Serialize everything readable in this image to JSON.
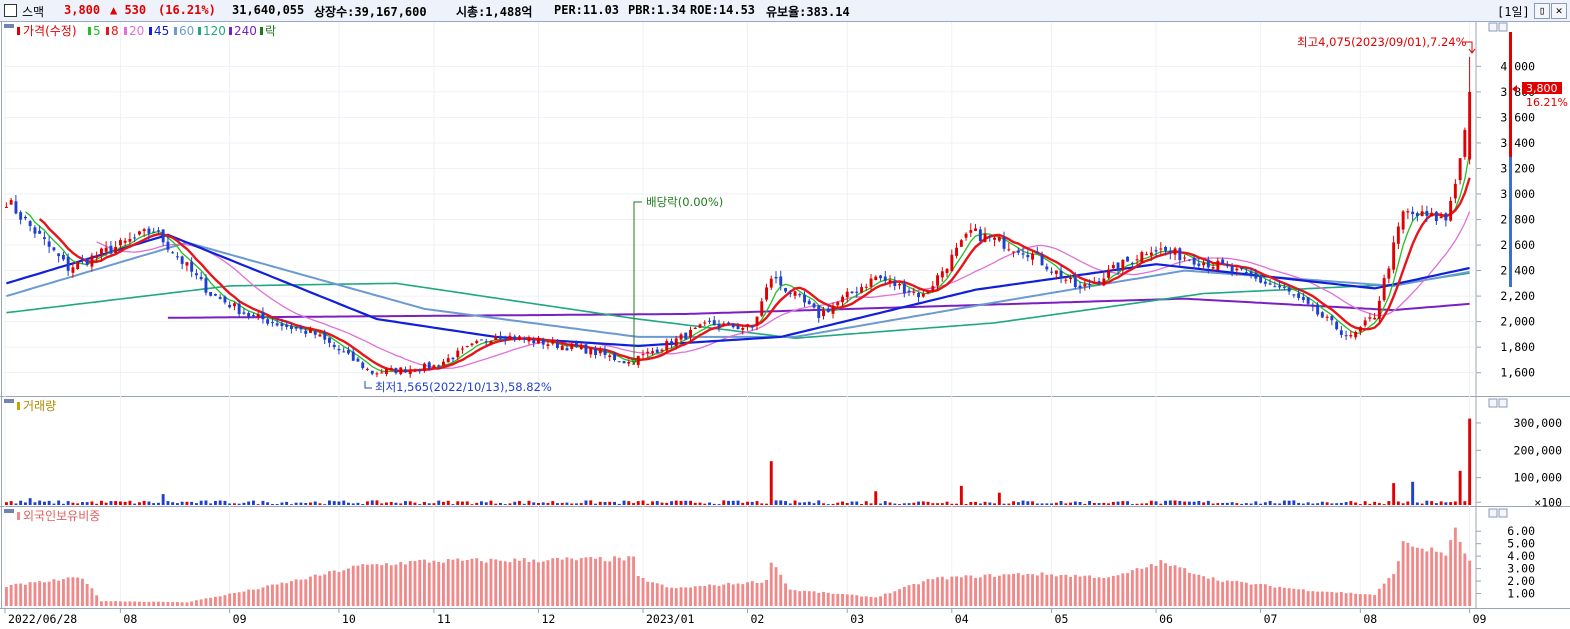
{
  "header": {
    "name": "스맥",
    "price": "3,800",
    "change": "▲ 530",
    "change_pct": "(16.21%)",
    "volume": "31,640,055",
    "listed": "상장수:39,167,600",
    "mcap": "시총:1,488억",
    "per": "PER:11.03",
    "pbr": "PBR:1.34",
    "roe": "ROE:14.53",
    "float": "유보율:383.14",
    "period": "[1일]",
    "win_btn1": "▯",
    "win_btn2": "✕"
  },
  "colors": {
    "up": "#e00000",
    "down": "#1f3fd0",
    "ma5": "#22c022",
    "ma8": "#e8141b",
    "ma20": "#e070d8",
    "ma45": "#1020d8",
    "ma60": "#6a9ad0",
    "ma120": "#20a880",
    "ma240": "#7a20c0",
    "foreign_bar": "#f08a8a"
  },
  "legend": {
    "price": "가격(수정)",
    "ma5": "5",
    "ma8": "8",
    "ma20": "20",
    "ma45": "45",
    "ma60": "60",
    "ma120": "120",
    "ma240": "240",
    "rak": "락"
  },
  "panel_titles": {
    "volume": "거래량",
    "foreign": "외국인보유비중"
  },
  "annotations": {
    "high": "최고4,075(2023/09/01),7.24%",
    "low": "최저1,565(2022/10/13),58.82%",
    "dividend": "배당락(0.00%)",
    "current_price": "3,800",
    "current_pct": "16.21%"
  },
  "chart_data": [
    {
      "type": "candlestick",
      "title": "가격(수정)",
      "y_ticks": [
        "4,000",
        "3,800",
        "3,600",
        "3,400",
        "3,200",
        "3,000",
        "2,800",
        "2,600",
        "2,400",
        "2,200",
        "2,000",
        "1,800",
        "1,600"
      ],
      "ylim": [
        1480,
        4230
      ],
      "x_ticks": [
        "2022/06/28",
        "08",
        "09",
        "10",
        "11",
        "12",
        "2023/01",
        "02",
        "03",
        "04",
        "05",
        "06",
        "07",
        "08",
        "09"
      ],
      "close_anchors": [
        {
          "date": "2022/06/28",
          "close": 2950
        },
        {
          "date": "2022/07/15",
          "close": 2420
        },
        {
          "date": "2022/08/01",
          "close": 2600
        },
        {
          "date": "2022/08/10",
          "close": 2720
        },
        {
          "date": "2022/08/26",
          "close": 2220
        },
        {
          "date": "2022/09/07",
          "close": 2050
        },
        {
          "date": "2022/09/27",
          "close": 1900
        },
        {
          "date": "2022/10/13",
          "close": 1600
        },
        {
          "date": "2022/11/01",
          "close": 1650
        },
        {
          "date": "2022/11/18",
          "close": 1900
        },
        {
          "date": "2022/12/15",
          "close": 1780
        },
        {
          "date": "2022/12/28",
          "close": 1680
        },
        {
          "date": "2023/01/20",
          "close": 1980
        },
        {
          "date": "2023/02/02",
          "close": 1950
        },
        {
          "date": "2023/02/08",
          "close": 2350
        },
        {
          "date": "2023/02/22",
          "close": 2050
        },
        {
          "date": "2023/03/10",
          "close": 2350
        },
        {
          "date": "2023/03/24",
          "close": 2200
        },
        {
          "date": "2023/04/07",
          "close": 2700
        },
        {
          "date": "2023/04/25",
          "close": 2550
        },
        {
          "date": "2023/05/10",
          "close": 2250
        },
        {
          "date": "2023/05/31",
          "close": 2580
        },
        {
          "date": "2023/06/20",
          "close": 2440
        },
        {
          "date": "2023/07/10",
          "close": 2250
        },
        {
          "date": "2023/07/28",
          "close": 1870
        },
        {
          "date": "2023/08/04",
          "close": 2050
        },
        {
          "date": "2023/08/14",
          "close": 2850
        },
        {
          "date": "2023/08/25",
          "close": 2800
        },
        {
          "date": "2023/08/30",
          "close": 3270
        },
        {
          "date": "2023/09/01",
          "close": 3800
        }
      ],
      "ma_anchors": {
        "ma45": [
          {
            "date": "2022/06/28",
            "v": 2300
          },
          {
            "date": "2022/08/15",
            "v": 2680
          },
          {
            "date": "2022/10/15",
            "v": 2020
          },
          {
            "date": "2022/11/20",
            "v": 1880
          },
          {
            "date": "2023/01/01",
            "v": 1810
          },
          {
            "date": "2023/02/10",
            "v": 1880
          },
          {
            "date": "2023/04/10",
            "v": 2250
          },
          {
            "date": "2023/06/01",
            "v": 2450
          },
          {
            "date": "2023/08/05",
            "v": 2260
          },
          {
            "date": "2023/09/01",
            "v": 2420
          }
        ],
        "ma60": [
          {
            "date": "2022/06/28",
            "v": 2200
          },
          {
            "date": "2022/08/20",
            "v": 2620
          },
          {
            "date": "2022/10/30",
            "v": 2100
          },
          {
            "date": "2023/01/01",
            "v": 1880
          },
          {
            "date": "2023/02/15",
            "v": 1880
          },
          {
            "date": "2023/04/15",
            "v": 2150
          },
          {
            "date": "2023/06/10",
            "v": 2400
          },
          {
            "date": "2023/08/10",
            "v": 2280
          },
          {
            "date": "2023/09/01",
            "v": 2390
          }
        ],
        "ma120": [
          {
            "date": "2022/06/28",
            "v": 2070
          },
          {
            "date": "2022/09/01",
            "v": 2280
          },
          {
            "date": "2022/10/20",
            "v": 2300
          },
          {
            "date": "2023/01/01",
            "v": 2020
          },
          {
            "date": "2023/02/15",
            "v": 1870
          },
          {
            "date": "2023/04/15",
            "v": 1990
          },
          {
            "date": "2023/06/15",
            "v": 2220
          },
          {
            "date": "2023/08/10",
            "v": 2290
          },
          {
            "date": "2023/09/01",
            "v": 2380
          }
        ],
        "ma240": [
          {
            "date": "2022/08/15",
            "v": 2030
          },
          {
            "date": "2023/01/15",
            "v": 2060
          },
          {
            "date": "2023/06/10",
            "v": 2180
          },
          {
            "date": "2023/08/10",
            "v": 2090
          },
          {
            "date": "2023/09/01",
            "v": 2140
          }
        ]
      }
    },
    {
      "type": "bar",
      "title": "거래량",
      "y_ticks": [
        "300,000",
        "200,000",
        "100,000",
        "×100"
      ],
      "ylim": [
        0,
        340000
      ],
      "spikes": [
        {
          "date": "2022/07/05",
          "value": 25000
        },
        {
          "date": "2022/08/12",
          "value": 40000
        },
        {
          "date": "2023/02/08",
          "value": 160000
        },
        {
          "date": "2023/03/10",
          "value": 50000
        },
        {
          "date": "2023/04/05",
          "value": 70000
        },
        {
          "date": "2023/04/17",
          "value": 45000
        },
        {
          "date": "2023/08/10",
          "value": 80000
        },
        {
          "date": "2023/08/16",
          "value": 85000
        },
        {
          "date": "2023/08/30",
          "value": 125000
        },
        {
          "date": "2023/09/01",
          "value": 316000
        }
      ]
    },
    {
      "type": "bar",
      "title": "외국인보유비중",
      "y_ticks": [
        "6.00",
        "5.00",
        "4.00",
        "3.00",
        "2.00",
        "1.00"
      ],
      "ylim": [
        0,
        6.9
      ],
      "anchors": [
        {
          "date": "2022/06/28",
          "v": 1.6
        },
        {
          "date": "2022/07/20",
          "v": 2.3
        },
        {
          "date": "2022/07/26",
          "v": 0.4
        },
        {
          "date": "2022/08/20",
          "v": 0.3
        },
        {
          "date": "2022/09/10",
          "v": 1.4
        },
        {
          "date": "2022/09/26",
          "v": 2.3
        },
        {
          "date": "2022/10/10",
          "v": 3.2
        },
        {
          "date": "2022/10/28",
          "v": 3.6
        },
        {
          "date": "2022/12/05",
          "v": 3.7
        },
        {
          "date": "2022/12/30",
          "v": 3.8
        },
        {
          "date": "2022/12/31",
          "v": 2.3
        },
        {
          "date": "2023/01/10",
          "v": 1.4
        },
        {
          "date": "2023/02/07",
          "v": 2.0
        },
        {
          "date": "2023/02/08",
          "v": 3.7
        },
        {
          "date": "2023/02/14",
          "v": 1.3
        },
        {
          "date": "2023/03/10",
          "v": 0.7
        },
        {
          "date": "2023/03/28",
          "v": 2.2
        },
        {
          "date": "2023/04/25",
          "v": 2.6
        },
        {
          "date": "2023/05/20",
          "v": 2.3
        },
        {
          "date": "2023/06/03",
          "v": 3.5
        },
        {
          "date": "2023/06/20",
          "v": 2.1
        },
        {
          "date": "2023/07/15",
          "v": 1.3
        },
        {
          "date": "2023/08/05",
          "v": 0.9
        },
        {
          "date": "2023/08/10",
          "v": 2.6
        },
        {
          "date": "2023/08/14",
          "v": 5.0
        },
        {
          "date": "2023/08/25",
          "v": 4.2
        },
        {
          "date": "2023/08/29",
          "v": 6.0
        },
        {
          "date": "2023/09/01",
          "v": 3.5
        }
      ]
    }
  ]
}
